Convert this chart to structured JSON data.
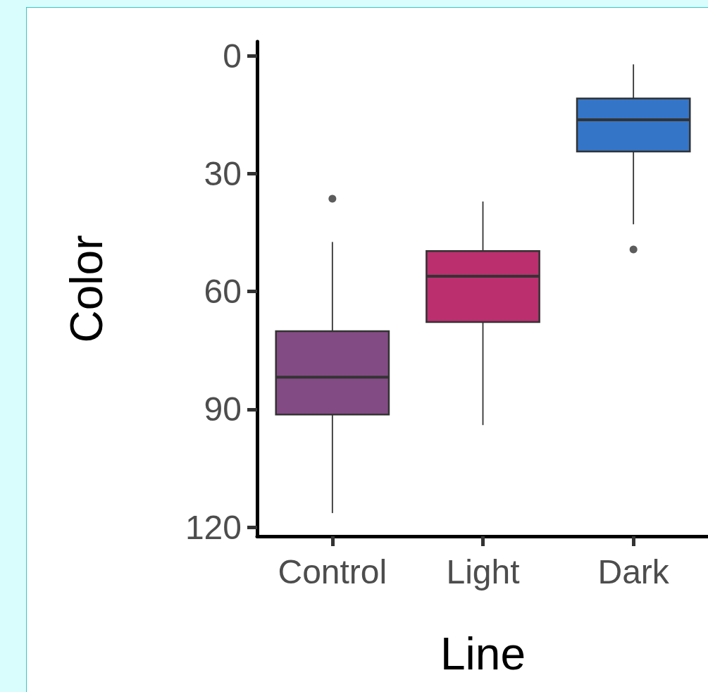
{
  "chart_data": {
    "type": "box",
    "xlabel": "Line",
    "ylabel": "Color",
    "categories": [
      "Control",
      "Light",
      "Dark"
    ],
    "colors": [
      "#834b84",
      "#bb2f6f",
      "#3475c8"
    ],
    "boxes": [
      {
        "low": 47.4,
        "q1": 70.1,
        "median": 81.8,
        "q3": 91.3,
        "high": 116.4,
        "outliers": [
          36.4
        ]
      },
      {
        "low": 37.1,
        "q1": 49.7,
        "median": 56.1,
        "q3": 67.8,
        "high": 94.0
      },
      {
        "low": 2.2,
        "q1": 10.9,
        "median": 16.3,
        "q3": 24.4,
        "high": 42.9,
        "outliers": [
          49.3
        ]
      }
    ],
    "ylim": [
      122.3,
      -3.6
    ],
    "yticks": [
      0,
      30,
      60,
      90,
      120
    ]
  }
}
